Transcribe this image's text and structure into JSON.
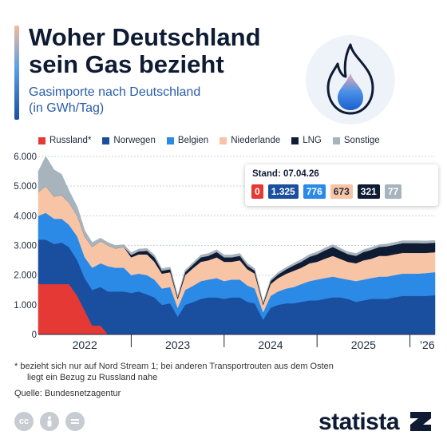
{
  "header": {
    "title_line1": "Woher Deutschland",
    "title_line2": "sein Gas bezieht",
    "subtitle_line1": "Gasimporte nach Deutschland",
    "subtitle_line2": "(in GWh/Tag)"
  },
  "legend": [
    {
      "label": "Russland*",
      "color": "#e53935"
    },
    {
      "label": "Norwegen",
      "color": "#1a4fa0"
    },
    {
      "label": "Belgien",
      "color": "#2b8ae6"
    },
    {
      "label": "Niederlande",
      "color": "#f7c4a6"
    },
    {
      "label": "LNG",
      "color": "#0e1b33"
    },
    {
      "label": "Sonstige",
      "color": "#a7b3bd"
    }
  ],
  "tooltip": {
    "title": "Stand: 07.04.26",
    "values": [
      {
        "label": "0",
        "color": "#e53935",
        "text_color": "#ffffff"
      },
      {
        "label": "1.325",
        "color": "#1a4fa0",
        "text_color": "#ffffff"
      },
      {
        "label": "776",
        "color": "#2b8ae6",
        "text_color": "#ffffff"
      },
      {
        "label": "673",
        "color": "#f7c4a6",
        "text_color": "#1d2a3a"
      },
      {
        "label": "321",
        "color": "#0e1b33",
        "text_color": "#ffffff"
      },
      {
        "label": "77",
        "color": "#a7b3bd",
        "text_color": "#ffffff"
      }
    ]
  },
  "chart_data": {
    "type": "area",
    "stacked": true,
    "ylim": [
      0,
      6000
    ],
    "y_ticks": [
      "0",
      "1.000",
      "2.000",
      "3.000",
      "4.000",
      "5.000",
      "6.000"
    ],
    "y_tick_values": [
      0,
      1000,
      2000,
      3000,
      4000,
      5000,
      6000
    ],
    "x_tick_labels": [
      "2022",
      "2023",
      "2024",
      "2025",
      "’26"
    ],
    "x": [
      2022.0,
      2022.08,
      2022.17,
      2022.25,
      2022.33,
      2022.42,
      2022.5,
      2022.58,
      2022.67,
      2022.75,
      2022.83,
      2022.92,
      2023.0,
      2023.08,
      2023.17,
      2023.25,
      2023.33,
      2023.42,
      2023.5,
      2023.58,
      2023.67,
      2023.75,
      2023.83,
      2023.92,
      2024.0,
      2024.08,
      2024.17,
      2024.25,
      2024.33,
      2024.42,
      2024.5,
      2024.58,
      2024.67,
      2024.75,
      2024.83,
      2024.92,
      2025.0,
      2025.08,
      2025.17,
      2025.25,
      2025.33,
      2025.42,
      2025.5,
      2025.58,
      2025.67,
      2025.75,
      2025.83,
      2025.92,
      2026.0,
      2026.08,
      2026.17,
      2026.27
    ],
    "series": [
      {
        "name": "Russland*",
        "color": "#e53935",
        "values": [
          1700,
          1700,
          1700,
          1700,
          1700,
          1300,
          800,
          300,
          300,
          0,
          0,
          0,
          0,
          0,
          0,
          0,
          0,
          0,
          0,
          0,
          0,
          0,
          0,
          0,
          0,
          0,
          0,
          0,
          0,
          0,
          0,
          0,
          0,
          0,
          0,
          0,
          0,
          0,
          0,
          0,
          0,
          0,
          0,
          0,
          0,
          0,
          0,
          0,
          0,
          0,
          0,
          0
        ]
      },
      {
        "name": "Norwegen",
        "color": "#1a4fa0",
        "values": [
          1500,
          1500,
          1350,
          1400,
          1250,
          1200,
          1100,
          1200,
          1300,
          1450,
          1450,
          1450,
          1400,
          1450,
          1350,
          1250,
          1000,
          1050,
          600,
          1000,
          1100,
          1200,
          1250,
          1250,
          1200,
          1250,
          1250,
          1100,
          1050,
          500,
          900,
          1000,
          1050,
          1050,
          1100,
          1150,
          1150,
          1200,
          1250,
          1250,
          1200,
          1100,
          1150,
          1200,
          1200,
          1200,
          1250,
          1300,
          1300,
          1300,
          1300,
          1325
        ]
      },
      {
        "name": "Belgien",
        "color": "#2b8ae6",
        "values": [
          800,
          900,
          850,
          800,
          750,
          800,
          700,
          750,
          800,
          850,
          800,
          800,
          600,
          600,
          650,
          600,
          550,
          550,
          300,
          500,
          550,
          600,
          600,
          650,
          600,
          600,
          600,
          550,
          500,
          250,
          400,
          450,
          500,
          550,
          600,
          650,
          700,
          700,
          700,
          650,
          650,
          700,
          700,
          700,
          750,
          750,
          750,
          750,
          750,
          750,
          770,
          776
        ]
      },
      {
        "name": "Niederlande",
        "color": "#f7c4a6",
        "values": [
          800,
          900,
          750,
          800,
          750,
          700,
          700,
          700,
          750,
          700,
          650,
          700,
          600,
          650,
          700,
          600,
          500,
          500,
          300,
          500,
          600,
          650,
          650,
          700,
          650,
          600,
          650,
          550,
          500,
          250,
          400,
          450,
          500,
          550,
          550,
          600,
          600,
          650,
          700,
          650,
          600,
          600,
          650,
          650,
          700,
          700,
          700,
          700,
          700,
          700,
          680,
          673
        ]
      },
      {
        "name": "LNG",
        "color": "#0e1b33",
        "values": [
          0,
          0,
          0,
          0,
          0,
          0,
          0,
          0,
          0,
          0,
          0,
          0,
          80,
          100,
          120,
          150,
          100,
          100,
          60,
          100,
          120,
          150,
          150,
          180,
          150,
          150,
          150,
          120,
          100,
          50,
          100,
          120,
          150,
          180,
          200,
          220,
          250,
          280,
          300,
          280,
          260,
          250,
          280,
          300,
          300,
          320,
          320,
          330,
          330,
          330,
          325,
          321
        ]
      },
      {
        "name": "Sonstige",
        "color": "#a7b3bd",
        "values": [
          700,
          1000,
          900,
          700,
          400,
          300,
          200,
          150,
          100,
          100,
          100,
          80,
          80,
          80,
          80,
          80,
          70,
          70,
          50,
          70,
          70,
          80,
          80,
          80,
          80,
          80,
          80,
          80,
          70,
          40,
          60,
          70,
          70,
          70,
          80,
          80,
          80,
          80,
          80,
          80,
          80,
          80,
          80,
          80,
          80,
          80,
          80,
          80,
          80,
          80,
          78,
          77
        ]
      }
    ]
  },
  "footnote": {
    "line1": "* bezieht sich nur auf Nord Stream 1; bei anderen Transportrouten aus dem Osten",
    "line2": "liegt ein Bezug zu Russland nahe"
  },
  "source": "Quelle: Bundesnetzagentur",
  "brand": "statista"
}
